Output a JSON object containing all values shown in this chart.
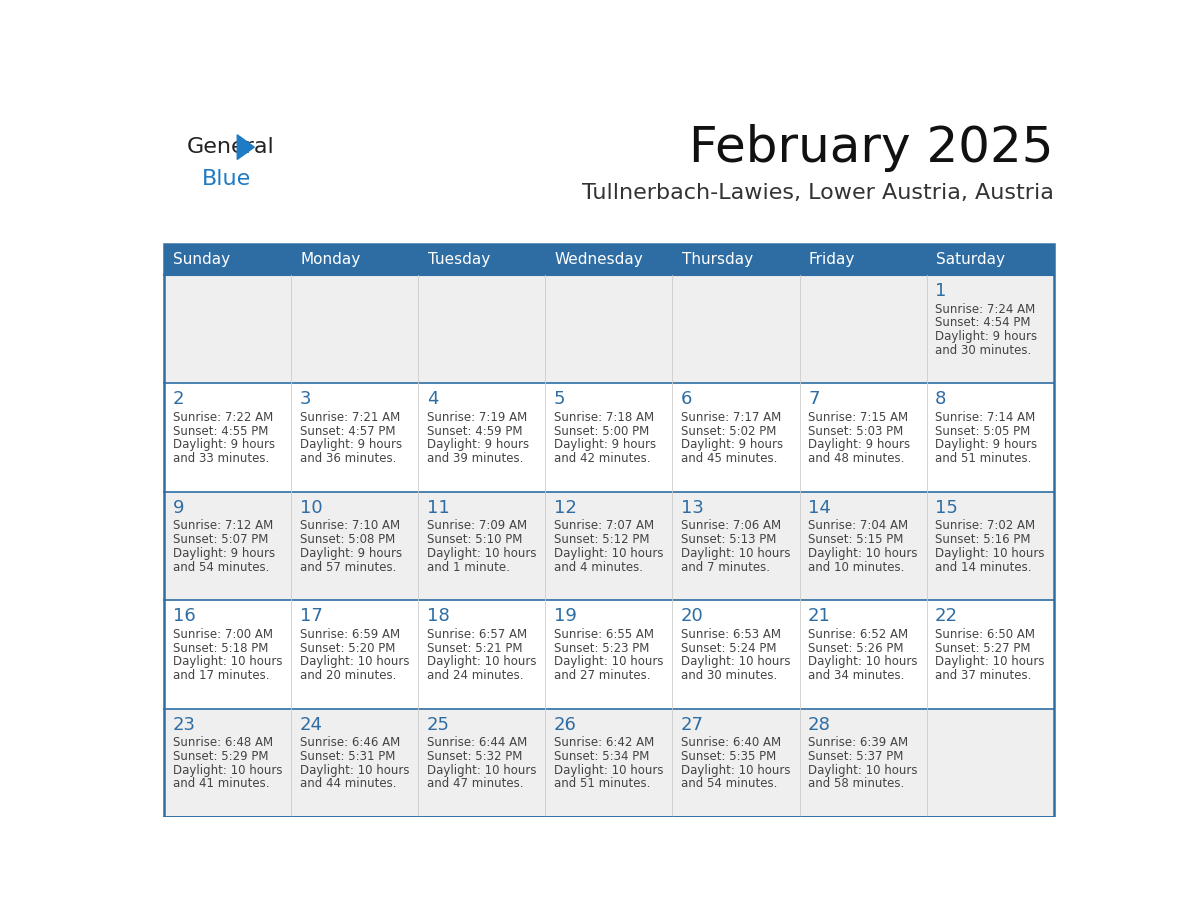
{
  "title": "February 2025",
  "subtitle": "Tullnerbach-Lawies, Lower Austria, Austria",
  "header_bg": "#2E6DA4",
  "header_text_color": "#FFFFFF",
  "day_number_color": "#2E6DA4",
  "text_color": "#444444",
  "row_sep_color": "#2E6DA4",
  "col_sep_color": "#CCCCCC",
  "outer_border_color": "#2E6DA4",
  "days_of_week": [
    "Sunday",
    "Monday",
    "Tuesday",
    "Wednesday",
    "Thursday",
    "Friday",
    "Saturday"
  ],
  "calendar_data": [
    [
      null,
      null,
      null,
      null,
      null,
      null,
      {
        "day": 1,
        "sunrise": "7:24 AM",
        "sunset": "4:54 PM",
        "daylight": "9 hours and 30 minutes."
      }
    ],
    [
      {
        "day": 2,
        "sunrise": "7:22 AM",
        "sunset": "4:55 PM",
        "daylight": "9 hours and 33 minutes."
      },
      {
        "day": 3,
        "sunrise": "7:21 AM",
        "sunset": "4:57 PM",
        "daylight": "9 hours and 36 minutes."
      },
      {
        "day": 4,
        "sunrise": "7:19 AM",
        "sunset": "4:59 PM",
        "daylight": "9 hours and 39 minutes."
      },
      {
        "day": 5,
        "sunrise": "7:18 AM",
        "sunset": "5:00 PM",
        "daylight": "9 hours and 42 minutes."
      },
      {
        "day": 6,
        "sunrise": "7:17 AM",
        "sunset": "5:02 PM",
        "daylight": "9 hours and 45 minutes."
      },
      {
        "day": 7,
        "sunrise": "7:15 AM",
        "sunset": "5:03 PM",
        "daylight": "9 hours and 48 minutes."
      },
      {
        "day": 8,
        "sunrise": "7:14 AM",
        "sunset": "5:05 PM",
        "daylight": "9 hours and 51 minutes."
      }
    ],
    [
      {
        "day": 9,
        "sunrise": "7:12 AM",
        "sunset": "5:07 PM",
        "daylight": "9 hours and 54 minutes."
      },
      {
        "day": 10,
        "sunrise": "7:10 AM",
        "sunset": "5:08 PM",
        "daylight": "9 hours and 57 minutes."
      },
      {
        "day": 11,
        "sunrise": "7:09 AM",
        "sunset": "5:10 PM",
        "daylight": "10 hours and 1 minute."
      },
      {
        "day": 12,
        "sunrise": "7:07 AM",
        "sunset": "5:12 PM",
        "daylight": "10 hours and 4 minutes."
      },
      {
        "day": 13,
        "sunrise": "7:06 AM",
        "sunset": "5:13 PM",
        "daylight": "10 hours and 7 minutes."
      },
      {
        "day": 14,
        "sunrise": "7:04 AM",
        "sunset": "5:15 PM",
        "daylight": "10 hours and 10 minutes."
      },
      {
        "day": 15,
        "sunrise": "7:02 AM",
        "sunset": "5:16 PM",
        "daylight": "10 hours and 14 minutes."
      }
    ],
    [
      {
        "day": 16,
        "sunrise": "7:00 AM",
        "sunset": "5:18 PM",
        "daylight": "10 hours and 17 minutes."
      },
      {
        "day": 17,
        "sunrise": "6:59 AM",
        "sunset": "5:20 PM",
        "daylight": "10 hours and 20 minutes."
      },
      {
        "day": 18,
        "sunrise": "6:57 AM",
        "sunset": "5:21 PM",
        "daylight": "10 hours and 24 minutes."
      },
      {
        "day": 19,
        "sunrise": "6:55 AM",
        "sunset": "5:23 PM",
        "daylight": "10 hours and 27 minutes."
      },
      {
        "day": 20,
        "sunrise": "6:53 AM",
        "sunset": "5:24 PM",
        "daylight": "10 hours and 30 minutes."
      },
      {
        "day": 21,
        "sunrise": "6:52 AM",
        "sunset": "5:26 PM",
        "daylight": "10 hours and 34 minutes."
      },
      {
        "day": 22,
        "sunrise": "6:50 AM",
        "sunset": "5:27 PM",
        "daylight": "10 hours and 37 minutes."
      }
    ],
    [
      {
        "day": 23,
        "sunrise": "6:48 AM",
        "sunset": "5:29 PM",
        "daylight": "10 hours and 41 minutes."
      },
      {
        "day": 24,
        "sunrise": "6:46 AM",
        "sunset": "5:31 PM",
        "daylight": "10 hours and 44 minutes."
      },
      {
        "day": 25,
        "sunrise": "6:44 AM",
        "sunset": "5:32 PM",
        "daylight": "10 hours and 47 minutes."
      },
      {
        "day": 26,
        "sunrise": "6:42 AM",
        "sunset": "5:34 PM",
        "daylight": "10 hours and 51 minutes."
      },
      {
        "day": 27,
        "sunrise": "6:40 AM",
        "sunset": "5:35 PM",
        "daylight": "10 hours and 54 minutes."
      },
      {
        "day": 28,
        "sunrise": "6:39 AM",
        "sunset": "5:37 PM",
        "daylight": "10 hours and 58 minutes."
      },
      null
    ]
  ],
  "logo_general_color": "#222222",
  "logo_blue_color": "#1E7BC4",
  "logo_triangle_color": "#1E7BC4",
  "title_fontsize": 36,
  "subtitle_fontsize": 16,
  "header_fontsize": 11,
  "day_num_fontsize": 13,
  "cell_text_fontsize": 8.5
}
